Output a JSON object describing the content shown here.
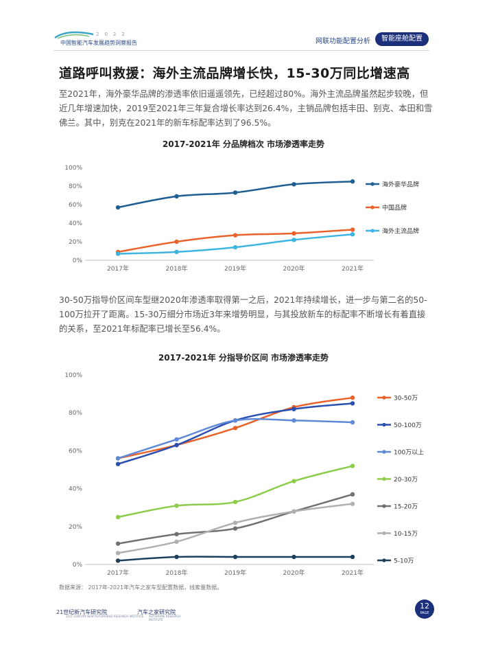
{
  "header": {
    "logo_year": "2022",
    "logo_text": "中国智能汽车发展趋势洞察报告",
    "nav_link": "网联功能配置分析",
    "nav_active": "智能座舱配置"
  },
  "title": "道路呼叫救援：海外主流品牌增长快，15-30万同比增速高",
  "paragraph1": "至2021年，海外豪华品牌的渗透率依旧遥遥领先，已经超过80%。海外主流品牌虽然起步较晚，但近几年增速加快，2019至2021年三年复合增长率达到26.4%，主销品牌包括丰田、别克、本田和雪佛兰。其中，别克在2021年的新车标配率达到了96.5%。",
  "paragraph2": "30-50万指导价区间车型继2020年渗透率取得第一之后，2021年持续增长，进一步与第二名的50-100万拉开了距离。15-30万细分市场近3年来增势明显，与其投放新车的标配率不断增长有着直接的关系，至2021年标配率已增长至56.4%。",
  "source": "数据来源： 2017年-2021年汽车之家车型配置数据，线索量数据。",
  "footer": {
    "logo1": "21世纪新汽车研究院",
    "logo1_sub": "21ST CENTURY NEW AUTOMOBILE RESEARCH INSTITUTE",
    "logo2": "汽车之家研究院",
    "logo2_sub": "AUTOHOME RESEARCH INSTITUTE",
    "page": "12",
    "page_word": "PAGE"
  },
  "chart_data": [
    {
      "type": "line",
      "title": "2017-2021年 分品牌档次 市场渗透率走势",
      "x": [
        "2017年",
        "2018年",
        "2019年",
        "2020年",
        "2021年"
      ],
      "ylim": [
        0,
        100
      ],
      "yticks": [
        "0%",
        "20%",
        "40%",
        "60%",
        "80%",
        "100%"
      ],
      "legend_position": "right",
      "series": [
        {
          "name": "海外豪华品牌",
          "color": "#1f5e93",
          "values": [
            57,
            69,
            73,
            82,
            85
          ]
        },
        {
          "name": "中国品牌",
          "color": "#e8622a",
          "values": [
            9,
            20,
            27,
            29,
            33
          ]
        },
        {
          "name": "海外主流品牌",
          "color": "#3cb5e0",
          "values": [
            7,
            9,
            14,
            22,
            28
          ]
        }
      ]
    },
    {
      "type": "line",
      "title": "2017-2021年 分指导价区间 市场渗透率走势",
      "x": [
        "2017年",
        "2018年",
        "2019年",
        "2020年",
        "2021年"
      ],
      "ylim": [
        0,
        100
      ],
      "yticks": [
        "0%",
        "20%",
        "40%",
        "60%",
        "80%",
        "100%"
      ],
      "legend_position": "right",
      "series": [
        {
          "name": "30-50万",
          "color": "#e8622a",
          "values": [
            56,
            63,
            72,
            83,
            88
          ]
        },
        {
          "name": "50-100万",
          "color": "#2a4fb0",
          "values": [
            53,
            63,
            76,
            82,
            85
          ]
        },
        {
          "name": "100万以上",
          "color": "#5f88d6",
          "values": [
            56,
            66,
            76,
            76,
            75
          ]
        },
        {
          "name": "20-30万",
          "color": "#8ccc4a",
          "values": [
            25,
            31,
            33,
            44,
            52
          ]
        },
        {
          "name": "15-20万",
          "color": "#707070",
          "values": [
            11,
            16,
            19,
            28,
            37
          ]
        },
        {
          "name": "10-15万",
          "color": "#b0b0b0",
          "values": [
            6,
            12,
            22,
            28,
            32
          ]
        },
        {
          "name": "5-10万",
          "color": "#1d3f5e",
          "values": [
            2,
            4,
            4,
            4,
            4
          ]
        }
      ]
    }
  ]
}
